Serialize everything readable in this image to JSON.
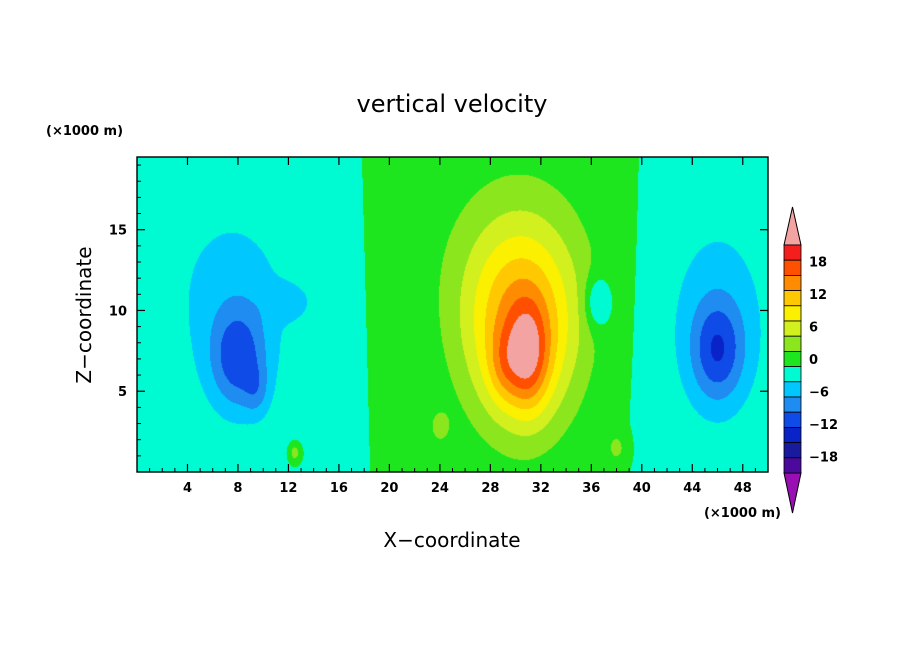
{
  "chart_data": {
    "type": "heatmap",
    "title": "vertical velocity",
    "xlabel": "X−coordinate",
    "ylabel": "Z−coordinate",
    "x_units": "(×1000 m)",
    "y_units": "(×1000 m)",
    "xlim": [
      0,
      50
    ],
    "ylim": [
      0,
      19.5
    ],
    "x_ticks": [
      4,
      8,
      12,
      16,
      20,
      24,
      28,
      32,
      36,
      40,
      44,
      48
    ],
    "x_tick_labels": [
      "4",
      "8",
      "12",
      "16",
      "20",
      "24",
      "28",
      "32",
      "36",
      "40",
      "44",
      "48"
    ],
    "y_ticks": [
      5,
      10,
      15
    ],
    "y_tick_labels": [
      "5",
      "10",
      "15"
    ],
    "colorbar": {
      "orientation": "vertical",
      "placement": "right",
      "levels": [
        -21,
        -18,
        -15,
        -12,
        -9,
        -6,
        -3,
        0,
        3,
        6,
        9,
        12,
        15,
        18,
        21
      ],
      "tick_values": [
        -18,
        -12,
        -6,
        0,
        6,
        12,
        18
      ],
      "tick_labels": [
        "−18",
        "−12",
        "−6",
        "0",
        "6",
        "12",
        "18"
      ],
      "colors": [
        "#4b0a9b",
        "#1a1a9e",
        "#0a23c8",
        "#0f4be6",
        "#1e8cf0",
        "#00c8ff",
        "#00fad2",
        "#1ee61e",
        "#8ce61e",
        "#d2f01e",
        "#faf000",
        "#ffc800",
        "#ff8c00",
        "#ff5000",
        "#f51e1e"
      ],
      "under_color": "#9a0fb4",
      "over_color": "#f4a3a3"
    },
    "features": [
      {
        "x": 30.5,
        "z": 8.5,
        "sx": 4.2,
        "sz": 6.0,
        "amp": 13.0
      },
      {
        "x": 31.0,
        "z": 7.0,
        "sx": 1.6,
        "sz": 3.2,
        "amp": 9.0
      },
      {
        "x": 29.0,
        "z": 6.5,
        "sx": 1.3,
        "sz": 2.3,
        "amp": 4.0
      },
      {
        "x": 30.0,
        "z": 12.0,
        "sx": 6.5,
        "sz": 7.0,
        "amp": 5.0
      },
      {
        "x": 8.0,
        "z": 7.0,
        "sx": 2.2,
        "sz": 3.2,
        "amp": -9.0
      },
      {
        "x": 9.5,
        "z": 5.0,
        "sx": 1.0,
        "sz": 1.6,
        "amp": -3.5
      },
      {
        "x": 46.0,
        "z": 7.5,
        "sx": 2.1,
        "sz": 3.2,
        "amp": -9.0
      },
      {
        "x": 7.5,
        "z": 11.0,
        "sx": 6.0,
        "sz": 7.0,
        "amp": -4.0
      },
      {
        "x": 46.0,
        "z": 10.0,
        "sx": 5.0,
        "sz": 7.5,
        "amp": -4.0
      },
      {
        "x": 12.0,
        "z": 10.5,
        "sx": 1.8,
        "sz": 1.1,
        "amp": -3.0
      },
      {
        "x": 36.5,
        "z": 10.5,
        "sx": 1.0,
        "sz": 1.6,
        "amp": -6.0
      },
      {
        "x": 24.0,
        "z": 2.8,
        "sx": 0.8,
        "sz": 1.0,
        "amp": 4.0
      },
      {
        "x": 38.0,
        "z": 1.5,
        "sx": 0.7,
        "sz": 0.9,
        "amp": 4.0
      },
      {
        "x": 12.5,
        "z": 1.2,
        "sx": 0.4,
        "sz": 0.5,
        "amp": 5.0
      }
    ],
    "grid": false
  }
}
